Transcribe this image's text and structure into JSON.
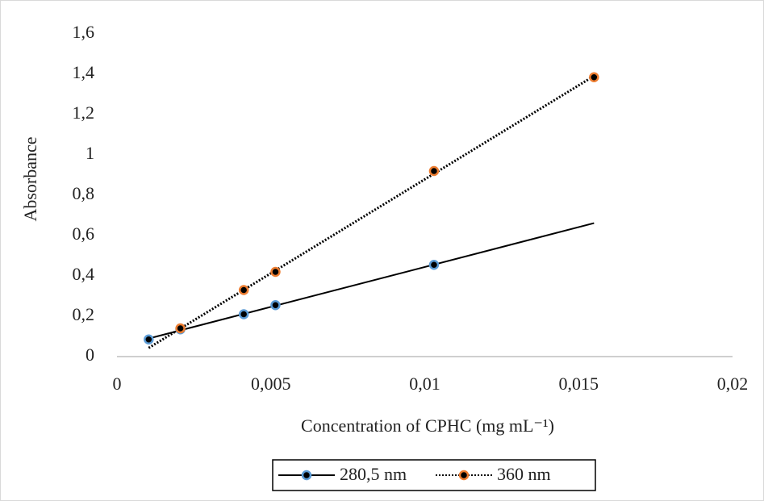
{
  "chart_data": {
    "type": "scatter",
    "xlabel": "Concentration of CPHC (mg mL⁻¹)",
    "ylabel": "Absorbance",
    "series": [
      {
        "name": "280,5 nm",
        "color": "#5b9bd5",
        "line_style": "solid",
        "trendline": "linear",
        "x": [
          0.00103,
          0.00206,
          0.00412,
          0.00515,
          0.0103
        ],
        "values": [
          0.085,
          0.135,
          0.21,
          0.255,
          0.455
        ]
      },
      {
        "name": "360 nm",
        "color": "#ed7d31",
        "line_style": "dotted",
        "trendline": "linear",
        "x": [
          0.00206,
          0.00412,
          0.00515,
          0.0103,
          0.0155
        ],
        "values": [
          0.14,
          0.33,
          0.42,
          0.92,
          1.385
        ]
      }
    ],
    "xlim": [
      0,
      0.02
    ],
    "xticks": [
      0,
      {
        "value": 0.005,
        "label": "0,005"
      },
      {
        "value": 0.01,
        "label": "0,01"
      },
      {
        "value": 0.015,
        "label": "0,015"
      },
      {
        "value": 0.02,
        "label": "0,02"
      }
    ],
    "ylim": [
      0,
      1.6
    ],
    "yticks": [
      0,
      {
        "value": 0.2,
        "label": "0,2"
      },
      {
        "value": 0.4,
        "label": "0,4"
      },
      {
        "value": 0.6,
        "label": "0,6"
      },
      {
        "value": 0.8,
        "label": "0,8"
      },
      1,
      {
        "value": 1.2,
        "label": "1,2"
      },
      {
        "value": 1.4,
        "label": "1,4"
      },
      {
        "value": 1.6,
        "label": "1,6"
      }
    ],
    "grid": false,
    "legend": "bottom"
  }
}
